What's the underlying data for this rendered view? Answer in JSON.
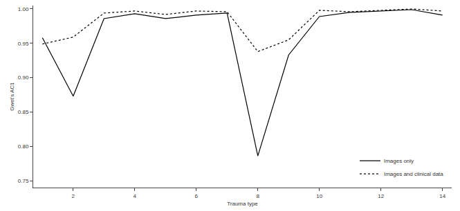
{
  "chart_data": {
    "type": "line",
    "x_label": "Trauma type",
    "y_label": "Gwet's AC1",
    "x": [
      1,
      2,
      3,
      4,
      5,
      6,
      7,
      8,
      9,
      10,
      11,
      12,
      13,
      14
    ],
    "series": [
      {
        "name": "Images only",
        "color": "#000000",
        "line_style": "solid",
        "values": [
          0.958,
          0.873,
          0.986,
          0.993,
          0.986,
          0.991,
          0.994,
          0.786,
          0.933,
          0.989,
          0.995,
          0.997,
          0.999,
          0.991
        ]
      },
      {
        "name": "Images and clinical data",
        "color": "#000000",
        "line_style": "dot",
        "values": [
          0.949,
          0.959,
          0.994,
          0.997,
          0.992,
          0.997,
          0.996,
          0.938,
          0.955,
          0.998,
          0.996,
          0.998,
          1.0,
          0.997
        ]
      }
    ],
    "xlim": [
      0.7,
      14.3
    ],
    "xticks": [
      2,
      4,
      6,
      8,
      10,
      12,
      14
    ],
    "ylim": [
      0.74,
      1.005
    ],
    "yticks": [
      0.75,
      {
        "value": 0.8,
        "label": "0.80"
      },
      0.85,
      {
        "value": 0.9,
        "label": "0.90"
      },
      0.95,
      {
        "value": 1.0,
        "label": "1.00"
      }
    ],
    "grid": false,
    "legend": "lower right"
  }
}
